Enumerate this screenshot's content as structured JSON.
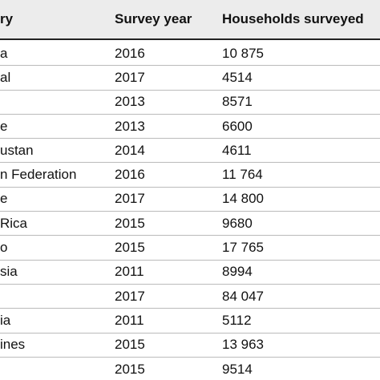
{
  "table": {
    "header": [
      "ry",
      "Survey year",
      "Households surveyed"
    ],
    "rows": [
      {
        "country": "a",
        "year": "2016",
        "households": "10 875"
      },
      {
        "country": "al",
        "year": "2017",
        "households": "4514"
      },
      {
        "year": "2013",
        "households": "8571"
      },
      {
        "country": "e",
        "year": "2013",
        "households": "6600"
      },
      {
        "country": "ustan",
        "year": "2014",
        "households": "4611"
      },
      {
        "country": "n Federation",
        "year": "2016",
        "households": "11 764"
      },
      {
        "country": "e",
        "year": "2017",
        "households": "14 800"
      },
      {
        "country": "Rica",
        "year": "2015",
        "households": "9680"
      },
      {
        "country": "o",
        "year": "2015",
        "households": "17 765"
      },
      {
        "country": "sia",
        "year": "2011",
        "households": "8994"
      },
      {
        "year": "2017",
        "households": "84 047"
      },
      {
        "country": "ia",
        "year": "2011",
        "households": "5112"
      },
      {
        "country": "ines",
        "year": "2015",
        "households": "13 963"
      },
      {
        "year": "2015",
        "households": "9514"
      }
    ]
  }
}
